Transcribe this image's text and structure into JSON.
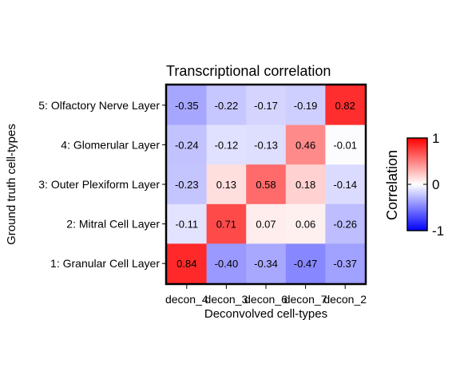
{
  "chart_data": {
    "type": "heatmap",
    "title": "Transcriptional correlation",
    "xlabel": "Deconvolved cell-types",
    "ylabel": "Ground truth cell-types",
    "x_categories": [
      "decon_4",
      "decon_3",
      "decon_6",
      "decon_7",
      "decon_2"
    ],
    "y_categories": [
      "5: Olfactory Nerve Layer",
      "4: Glomerular Layer",
      "3: Outer Plexiform Layer",
      "2: Mitral Cell Layer",
      "1: Granular Cell Layer"
    ],
    "values": [
      [
        -0.35,
        -0.22,
        -0.17,
        -0.19,
        0.82
      ],
      [
        -0.24,
        -0.12,
        -0.13,
        0.46,
        -0.01
      ],
      [
        -0.23,
        0.13,
        0.58,
        0.18,
        -0.14
      ],
      [
        -0.11,
        0.71,
        0.07,
        0.06,
        -0.26
      ],
      [
        0.84,
        -0.4,
        -0.34,
        -0.47,
        -0.37
      ]
    ],
    "value_labels": [
      [
        "-0.35",
        "-0.22",
        "-0.17",
        "-0.19",
        "0.82"
      ],
      [
        "-0.24",
        "-0.12",
        "-0.13",
        "0.46",
        "-0.01"
      ],
      [
        "-0.23",
        "0.13",
        "0.58",
        "0.18",
        "-0.14"
      ],
      [
        "-0.11",
        "0.71",
        "0.07",
        "0.06",
        "-0.26"
      ],
      [
        "0.84",
        "-0.40",
        "-0.34",
        "-0.47",
        "-0.37"
      ]
    ],
    "color_scale": {
      "low_color": "#0000ff",
      "mid_color": "#ffffff",
      "high_color": "#ff0000",
      "range": [
        -1,
        1
      ]
    },
    "legend": {
      "title": "Correlation",
      "ticks": [
        "1",
        "0",
        "-1"
      ],
      "placement": "right"
    }
  }
}
